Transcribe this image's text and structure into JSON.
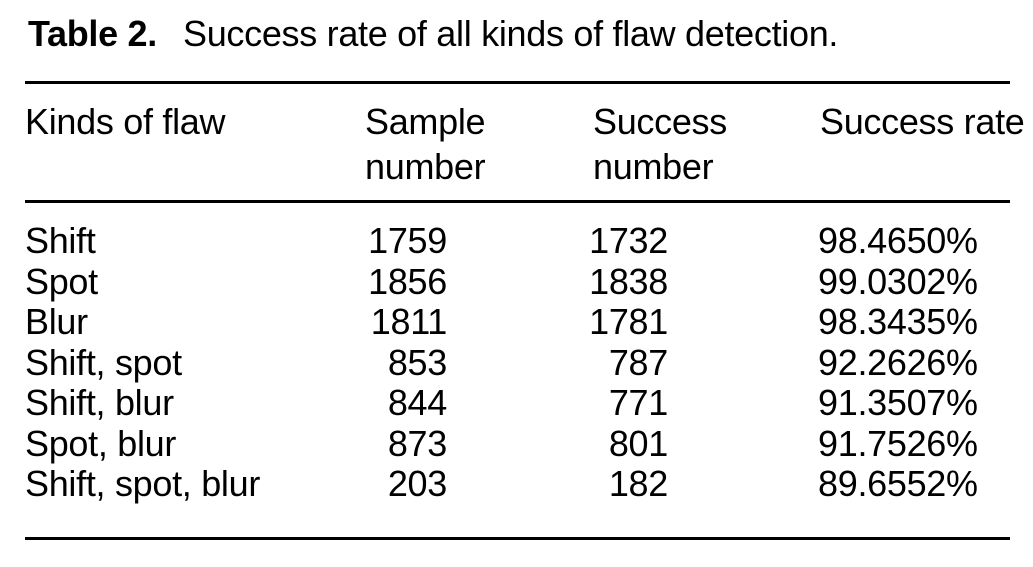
{
  "page": {
    "background_color": "#ffffff",
    "text_color": "#000000"
  },
  "caption": {
    "label": "Table 2.",
    "text": "Success rate of all kinds of flaw detection."
  },
  "table": {
    "columns": [
      {
        "label": "Kinds of flaw"
      },
      {
        "label": "Sample number"
      },
      {
        "label": "Success number"
      },
      {
        "label": "Success rate"
      }
    ],
    "rows": [
      {
        "flaw": "Shift",
        "sample_number": "1759",
        "success_number": "1732",
        "success_rate": "98.4650%"
      },
      {
        "flaw": "Spot",
        "sample_number": "1856",
        "success_number": "1838",
        "success_rate": "99.0302%"
      },
      {
        "flaw": "Blur",
        "sample_number": "1811",
        "success_number": "1781",
        "success_rate": "98.3435%"
      },
      {
        "flaw": "Shift, spot",
        "sample_number": "853",
        "success_number": "787",
        "success_rate": "92.2626%"
      },
      {
        "flaw": "Shift, blur",
        "sample_number": "844",
        "success_number": "771",
        "success_rate": "91.3507%"
      },
      {
        "flaw": "Spot, blur",
        "sample_number": "873",
        "success_number": "801",
        "success_rate": "91.7526%"
      },
      {
        "flaw": "Shift, spot, blur",
        "sample_number": "203",
        "success_number": "182",
        "success_rate": "89.6552%"
      }
    ]
  }
}
